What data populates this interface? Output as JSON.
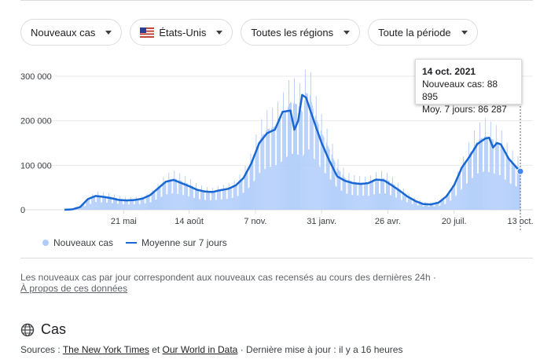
{
  "filters": {
    "metric": "Nouveaux cas",
    "country": "États-Unis",
    "country_flag": "us-flag-icon",
    "region": "Toutes les régions",
    "period": "Toute la période"
  },
  "tooltip": {
    "date": "14 oct. 2021",
    "line1": "Nouveaux cas: 88 895",
    "line2": "Moy. 7 jours: 86 287"
  },
  "legend": {
    "bars": "Nouveaux cas",
    "line": "Moyenne sur 7 jours"
  },
  "note": "Les nouveaux cas par jour correspondent aux nouveaux cas recensés au cours des dernières 24h  ·",
  "about_link": "À propos de ces données",
  "section_title": "Cas",
  "sources": {
    "prefix": "Sources : ",
    "link1": "The New York Times",
    "middle": " et ",
    "link2": "Our World in Data",
    "suffix": " · Dernière mise à jour : il y a 16 heures"
  },
  "colors": {
    "bars": "#aecbfa",
    "line": "#1967d2",
    "grid": "#e8eaed"
  },
  "chart_data": {
    "type": "bar",
    "ylim": [
      0,
      300000
    ],
    "y_ticks": [
      "0",
      "100 000",
      "200 000",
      "300 000"
    ],
    "x_ticks": [
      "21 mai",
      "14 août",
      "7 nov.",
      "31 janv.",
      "26 avr.",
      "20 juil.",
      "13 oct."
    ],
    "x_tick_day": [
      76,
      160,
      245,
      330,
      415,
      500,
      585
    ],
    "series": [
      {
        "name": "Nouveaux cas",
        "points": [
          [
            0,
            0
          ],
          [
            10,
            1000
          ],
          [
            20,
            5000
          ],
          [
            30,
            20000
          ],
          [
            40,
            32000
          ],
          [
            50,
            30000
          ],
          [
            60,
            28000
          ],
          [
            70,
            24000
          ],
          [
            80,
            22000
          ],
          [
            90,
            22000
          ],
          [
            100,
            24000
          ],
          [
            110,
            30000
          ],
          [
            120,
            45000
          ],
          [
            130,
            62000
          ],
          [
            140,
            68000
          ],
          [
            150,
            62000
          ],
          [
            160,
            55000
          ],
          [
            170,
            45000
          ],
          [
            180,
            40000
          ],
          [
            190,
            38000
          ],
          [
            200,
            42000
          ],
          [
            210,
            45000
          ],
          [
            220,
            52000
          ],
          [
            230,
            70000
          ],
          [
            240,
            100000
          ],
          [
            250,
            150000
          ],
          [
            260,
            172000
          ],
          [
            270,
            178000
          ],
          [
            280,
            200000
          ],
          [
            290,
            230000
          ],
          [
            300,
            225000
          ],
          [
            305,
            210000
          ],
          [
            310,
            250000
          ],
          [
            315,
            245000
          ],
          [
            320,
            210000
          ],
          [
            330,
            165000
          ],
          [
            340,
            130000
          ],
          [
            350,
            90000
          ],
          [
            360,
            68000
          ],
          [
            370,
            60000
          ],
          [
            380,
            58000
          ],
          [
            390,
            57000
          ],
          [
            400,
            65000
          ],
          [
            410,
            68000
          ],
          [
            420,
            58000
          ],
          [
            430,
            44000
          ],
          [
            440,
            30000
          ],
          [
            450,
            20000
          ],
          [
            460,
            14000
          ],
          [
            470,
            13000
          ],
          [
            480,
            15000
          ],
          [
            490,
            25000
          ],
          [
            500,
            48000
          ],
          [
            510,
            85000
          ],
          [
            520,
            120000
          ],
          [
            530,
            148000
          ],
          [
            540,
            158000
          ],
          [
            550,
            150000
          ],
          [
            560,
            140000
          ],
          [
            570,
            110000
          ],
          [
            580,
            95000
          ],
          [
            585,
            88895
          ]
        ]
      },
      {
        "name": "Moyenne sur 7 jours",
        "points": [
          [
            0,
            0
          ],
          [
            10,
            1000
          ],
          [
            20,
            6000
          ],
          [
            30,
            24000
          ],
          [
            40,
            31000
          ],
          [
            50,
            29000
          ],
          [
            60,
            26000
          ],
          [
            70,
            22000
          ],
          [
            80,
            21000
          ],
          [
            90,
            22000
          ],
          [
            100,
            25000
          ],
          [
            110,
            33000
          ],
          [
            120,
            48000
          ],
          [
            130,
            63000
          ],
          [
            140,
            67000
          ],
          [
            150,
            60000
          ],
          [
            160,
            53000
          ],
          [
            170,
            45000
          ],
          [
            180,
            41000
          ],
          [
            190,
            40000
          ],
          [
            200,
            44000
          ],
          [
            210,
            47000
          ],
          [
            220,
            55000
          ],
          [
            230,
            72000
          ],
          [
            240,
            105000
          ],
          [
            250,
            150000
          ],
          [
            260,
            172000
          ],
          [
            270,
            180000
          ],
          [
            280,
            220000
          ],
          [
            290,
            223000
          ],
          [
            295,
            180000
          ],
          [
            300,
            200000
          ],
          [
            305,
            258000
          ],
          [
            310,
            252000
          ],
          [
            320,
            200000
          ],
          [
            330,
            150000
          ],
          [
            340,
            110000
          ],
          [
            350,
            75000
          ],
          [
            360,
            65000
          ],
          [
            370,
            60000
          ],
          [
            380,
            58000
          ],
          [
            390,
            60000
          ],
          [
            400,
            68000
          ],
          [
            410,
            66000
          ],
          [
            420,
            55000
          ],
          [
            430,
            43000
          ],
          [
            440,
            30000
          ],
          [
            450,
            20000
          ],
          [
            460,
            13000
          ],
          [
            470,
            12000
          ],
          [
            480,
            16000
          ],
          [
            490,
            30000
          ],
          [
            500,
            55000
          ],
          [
            510,
            95000
          ],
          [
            520,
            120000
          ],
          [
            530,
            148000
          ],
          [
            540,
            160000
          ],
          [
            545,
            162000
          ],
          [
            550,
            140000
          ],
          [
            555,
            150000
          ],
          [
            560,
            147000
          ],
          [
            570,
            115000
          ],
          [
            580,
            95000
          ],
          [
            585,
            86287
          ]
        ]
      }
    ],
    "highlight": {
      "day": 585,
      "value": 86287
    }
  }
}
